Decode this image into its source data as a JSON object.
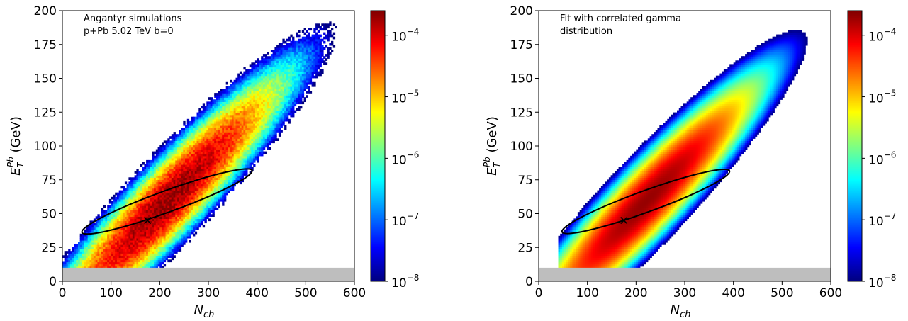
{
  "chart_data": [
    {
      "type": "heatmap",
      "annotation_lines": [
        "Angantyr simulations",
        "p+Pb 5.02 TeV b=0"
      ],
      "xlabel": {
        "main": "N",
        "sub": "ch"
      },
      "ylabel": {
        "main": "E",
        "sub": "T",
        "sup": "Pb",
        "unit": " (GeV)"
      },
      "xlim": [
        0,
        600
      ],
      "ylim": [
        0,
        200
      ],
      "xticks": [
        "0",
        "100",
        "200",
        "300",
        "400",
        "500",
        "600"
      ],
      "yticks": [
        "0",
        "25",
        "50",
        "75",
        "100",
        "125",
        "150",
        "175",
        "200"
      ],
      "excluded_band_y": [
        0,
        10
      ],
      "marker": {
        "x": 175,
        "y": 45
      },
      "contour": {
        "center_x": 215,
        "center_y": 59,
        "semi_major": 186,
        "semi_minor": 22,
        "angle_deg": 20
      },
      "ridge": {
        "intercept": 10,
        "slope": 0.26
      },
      "colorbar": {
        "scale": "log",
        "min_exp": -8,
        "max_exp": -3.6,
        "tick_exponents": [
          -8,
          -7,
          -6,
          -5,
          -4
        ]
      },
      "noisy_edge": true
    },
    {
      "type": "heatmap",
      "annotation_lines": [
        "Fit with correlated gamma",
        "distribution"
      ],
      "xlabel": {
        "main": "N",
        "sub": "ch"
      },
      "ylabel": {
        "main": "E",
        "sub": "T",
        "sup": "Pb",
        "unit": " (GeV)"
      },
      "xlim": [
        0,
        600
      ],
      "ylim": [
        0,
        200
      ],
      "xticks": [
        "0",
        "100",
        "200",
        "300",
        "400",
        "500",
        "600"
      ],
      "yticks": [
        "0",
        "25",
        "50",
        "75",
        "100",
        "125",
        "150",
        "175",
        "200"
      ],
      "excluded_band_y": [
        0,
        10
      ],
      "fit_x_min": 40,
      "marker": {
        "x": 175,
        "y": 45
      },
      "contour": {
        "center_x": 220,
        "center_y": 59,
        "semi_major": 183,
        "semi_minor": 22,
        "angle_deg": 20
      },
      "ridge": {
        "intercept": 10,
        "slope": 0.26
      },
      "colorbar": {
        "scale": "log",
        "min_exp": -8,
        "max_exp": -3.6,
        "tick_exponents": [
          -8,
          -7,
          -6,
          -5,
          -4
        ]
      },
      "noisy_edge": false
    }
  ],
  "colormap": [
    "#00007f",
    "#0000ff",
    "#0080ff",
    "#00ffff",
    "#80ff80",
    "#ffff00",
    "#ff8000",
    "#ff0000",
    "#7f0000"
  ],
  "band_color": "#bebebe",
  "line_color": "#000000"
}
